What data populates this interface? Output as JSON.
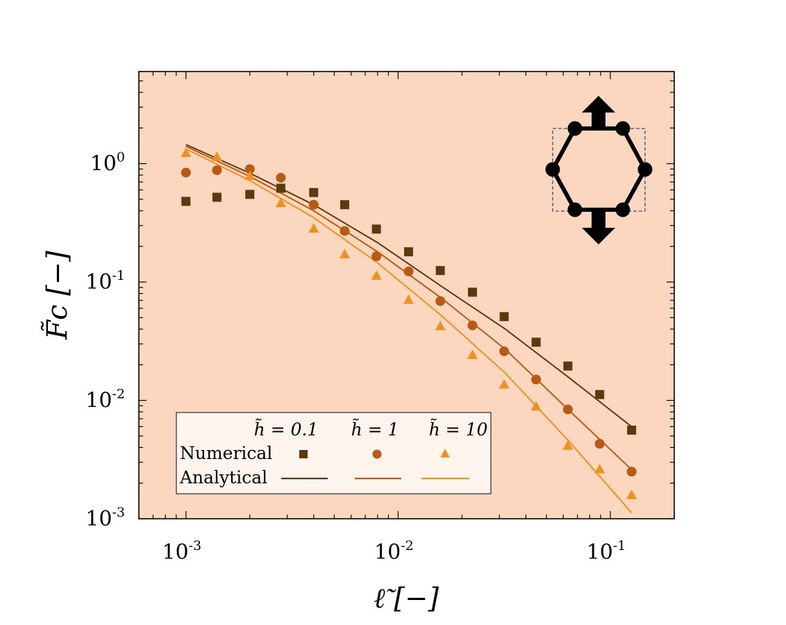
{
  "chart_data": {
    "type": "scatter",
    "title": "",
    "xlabel": "ℓ̃ [−]",
    "ylabel": "F̃c [−]",
    "xscale": "log",
    "yscale": "log",
    "xlim": [
      0.0006,
      0.2
    ],
    "ylim": [
      0.001,
      6
    ],
    "x_major_ticks": [
      0.001,
      0.01,
      0.1
    ],
    "y_major_ticks": [
      0.001,
      0.01,
      0.1,
      1
    ],
    "x_tick_labels": [
      "10",
      "10",
      "10"
    ],
    "x_tick_exponents": [
      "-3",
      "-2",
      "-1"
    ],
    "y_tick_labels": [
      "10",
      "10",
      "10",
      "10"
    ],
    "y_tick_exponents": [
      "-3",
      "-2",
      "-1",
      "0"
    ],
    "grid": false,
    "plot_background": "#fbd7bf",
    "legend": {
      "placement": "lower-left",
      "column_headers": [
        "h̃ = 0.1",
        "h̃ = 1",
        "h̃ = 10"
      ],
      "row_labels": [
        "Numerical",
        "Analytical"
      ]
    },
    "numerical_series": [
      {
        "name": "h̃ = 0.1",
        "marker": "square",
        "color": "#5a3a0e",
        "x": [
          0.001,
          0.0014,
          0.002,
          0.0028,
          0.004,
          0.0056,
          0.0079,
          0.0112,
          0.0158,
          0.0224,
          0.0316,
          0.0447,
          0.0631,
          0.0891,
          0.126
        ],
        "y": [
          0.48,
          0.52,
          0.55,
          0.62,
          0.57,
          0.45,
          0.28,
          0.18,
          0.125,
          0.082,
          0.051,
          0.031,
          0.0195,
          0.0112,
          0.0056
        ]
      },
      {
        "name": "h̃ = 1",
        "marker": "circle",
        "color": "#b85a14",
        "x": [
          0.001,
          0.0014,
          0.002,
          0.0028,
          0.004,
          0.0056,
          0.0079,
          0.0112,
          0.0158,
          0.0224,
          0.0316,
          0.0447,
          0.0631,
          0.0891,
          0.126
        ],
        "y": [
          0.84,
          0.88,
          0.9,
          0.76,
          0.45,
          0.27,
          0.165,
          0.123,
          0.069,
          0.043,
          0.026,
          0.015,
          0.0084,
          0.0043,
          0.0025
        ]
      },
      {
        "name": "h̃ = 10",
        "marker": "triangle",
        "color": "#f0911e",
        "x": [
          0.001,
          0.0014,
          0.002,
          0.0028,
          0.004,
          0.0056,
          0.0079,
          0.0112,
          0.0158,
          0.0224,
          0.0316,
          0.0447,
          0.0631,
          0.0891,
          0.126
        ],
        "y": [
          1.22,
          1.13,
          0.78,
          0.46,
          0.28,
          0.17,
          0.112,
          0.07,
          0.042,
          0.024,
          0.0135,
          0.0088,
          0.0041,
          0.0026,
          0.00157
        ]
      }
    ],
    "analytical_series": [
      {
        "name": "h̃ = 0.1",
        "color": "#5a3a0e",
        "x": [
          0.001,
          0.002,
          0.004,
          0.008,
          0.016,
          0.032,
          0.064,
          0.126
        ],
        "y": [
          1.45,
          0.83,
          0.45,
          0.215,
          0.092,
          0.04,
          0.0155,
          0.006
        ]
      },
      {
        "name": "h̃ = 1",
        "color": "#b85a14",
        "x": [
          0.001,
          0.002,
          0.004,
          0.008,
          0.016,
          0.032,
          0.064,
          0.126
        ],
        "y": [
          1.4,
          0.78,
          0.4,
          0.18,
          0.073,
          0.027,
          0.0082,
          0.0026
        ]
      },
      {
        "name": "h̃ = 10",
        "color": "#f0911e",
        "x": [
          0.001,
          0.002,
          0.004,
          0.008,
          0.016,
          0.032,
          0.064,
          0.126
        ],
        "y": [
          1.33,
          0.72,
          0.35,
          0.145,
          0.052,
          0.017,
          0.0045,
          0.00112
        ]
      }
    ],
    "inset": {
      "description_shape": "hexagon-cell-with-vertical-arrows",
      "line_color": "#000000",
      "box_color": "#3a4a80"
    }
  }
}
